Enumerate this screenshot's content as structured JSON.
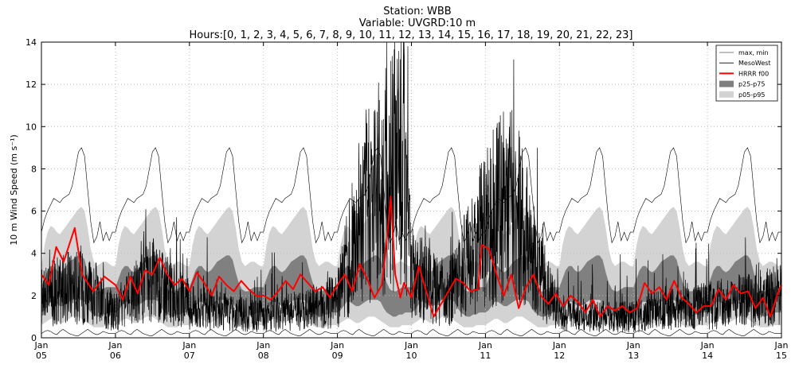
{
  "chart_data": {
    "type": "line",
    "title_lines": [
      "Station: WBB",
      "Variable: UVGRD:10 m",
      "Hours:[0, 1, 2, 3, 4, 5, 6, 7, 8, 9, 10, 11, 12, 13, 14, 15, 16, 17, 18, 19, 20, 21, 22, 23]"
    ],
    "ylabel": "10 m Wind Speed (m s⁻¹)",
    "xlabel": "",
    "ylim": [
      0,
      14
    ],
    "yticks": [
      0,
      2,
      4,
      6,
      8,
      10,
      12,
      14
    ],
    "x_domain_days": [
      5,
      15
    ],
    "x_ticks": [
      {
        "day": 5,
        "top": "Jan",
        "bottom": "05"
      },
      {
        "day": 6,
        "top": "Jan",
        "bottom": "06"
      },
      {
        "day": 7,
        "top": "Jan",
        "bottom": "07"
      },
      {
        "day": 8,
        "top": "Jan",
        "bottom": "08"
      },
      {
        "day": 9,
        "top": "Jan",
        "bottom": "09"
      },
      {
        "day": 10,
        "top": "Jan",
        "bottom": "10"
      },
      {
        "day": 11,
        "top": "Jan",
        "bottom": "11"
      },
      {
        "day": 12,
        "top": "Jan",
        "bottom": "12"
      },
      {
        "day": 13,
        "top": "Jan",
        "bottom": "13"
      },
      {
        "day": 14,
        "top": "Jan",
        "bottom": "14"
      },
      {
        "day": 15,
        "top": "Jan",
        "bottom": "15"
      }
    ],
    "grid": true,
    "legend_position": "top-right",
    "legend": [
      {
        "label": "max, min",
        "kind": "line",
        "color": "#000000"
      },
      {
        "label": "MesoWest",
        "kind": "line",
        "color": "#000000"
      },
      {
        "label": "HRRR f00",
        "kind": "line",
        "color": "#ff0000"
      },
      {
        "label": "p25-p75",
        "kind": "patch",
        "color": "#808080"
      },
      {
        "label": "p05-p95",
        "kind": "patch",
        "color": "#d3d3d3"
      }
    ],
    "series": {
      "max_daily_profile": [
        5.0,
        5.6,
        6.0,
        6.3,
        6.6,
        6.5,
        6.4,
        6.6,
        6.7,
        6.8,
        7.2,
        8.0,
        8.8,
        9.0,
        8.6,
        7.0,
        5.5,
        4.5,
        4.8,
        5.5,
        4.6,
        5.0,
        4.6,
        5.0
      ],
      "min_daily_profile": [
        0.2,
        0.3,
        0.35,
        0.3,
        0.2,
        0.15,
        0.3,
        0.4,
        0.3,
        0.2,
        0.15,
        0.1,
        0.1,
        0.2,
        0.3,
        0.4,
        0.3,
        0.2,
        0.15,
        0.2,
        0.3,
        0.25,
        0.2,
        0.2
      ],
      "p95_daily_profile": [
        3.4,
        4.4,
        5.0,
        5.3,
        5.2,
        5.0,
        4.9,
        5.1,
        5.3,
        5.5,
        5.7,
        5.9,
        6.1,
        6.2,
        6.0,
        5.2,
        4.2,
        3.6,
        3.4,
        3.5,
        3.6,
        3.6,
        3.5,
        3.4
      ],
      "p75_daily_profile": [
        2.4,
        2.8,
        3.2,
        3.4,
        3.4,
        3.2,
        3.1,
        3.2,
        3.4,
        3.6,
        3.7,
        3.8,
        3.9,
        3.9,
        3.7,
        3.1,
        2.6,
        2.3,
        2.2,
        2.2,
        2.3,
        2.4,
        2.4,
        2.4
      ],
      "p25_daily_profile": [
        1.2,
        1.3,
        1.5,
        1.7,
        1.7,
        1.6,
        1.5,
        1.5,
        1.6,
        1.7,
        1.8,
        1.8,
        1.8,
        1.8,
        1.7,
        1.4,
        1.2,
        1.1,
        1.0,
        1.0,
        1.1,
        1.1,
        1.2,
        1.2
      ],
      "p05_daily_profile": [
        0.6,
        0.7,
        0.8,
        0.9,
        0.9,
        0.8,
        0.7,
        0.7,
        0.8,
        0.9,
        1.0,
        1.0,
        1.0,
        0.9,
        0.8,
        0.7,
        0.6,
        0.5,
        0.5,
        0.5,
        0.5,
        0.6,
        0.6,
        0.6
      ],
      "hrrr_f00": [
        [
          5.0,
          3.0
        ],
        [
          5.1,
          2.5
        ],
        [
          5.2,
          4.3
        ],
        [
          5.3,
          3.6
        ],
        [
          5.45,
          5.2
        ],
        [
          5.55,
          3.0
        ],
        [
          5.7,
          2.2
        ],
        [
          5.85,
          2.9
        ],
        [
          6.0,
          2.5
        ],
        [
          6.1,
          1.8
        ],
        [
          6.2,
          2.9
        ],
        [
          6.3,
          2.1
        ],
        [
          6.4,
          3.2
        ],
        [
          6.5,
          3.0
        ],
        [
          6.6,
          3.8
        ],
        [
          6.7,
          3.0
        ],
        [
          6.8,
          2.5
        ],
        [
          6.9,
          2.8
        ],
        [
          7.0,
          2.2
        ],
        [
          7.1,
          3.1
        ],
        [
          7.2,
          2.6
        ],
        [
          7.3,
          2.0
        ],
        [
          7.4,
          2.9
        ],
        [
          7.5,
          2.5
        ],
        [
          7.6,
          2.2
        ],
        [
          7.7,
          2.7
        ],
        [
          7.8,
          2.3
        ],
        [
          7.9,
          2.0
        ],
        [
          8.0,
          2.0
        ],
        [
          8.1,
          1.8
        ],
        [
          8.2,
          2.2
        ],
        [
          8.3,
          2.7
        ],
        [
          8.4,
          2.3
        ],
        [
          8.5,
          3.0
        ],
        [
          8.6,
          2.6
        ],
        [
          8.7,
          2.2
        ],
        [
          8.8,
          2.4
        ],
        [
          8.9,
          1.9
        ],
        [
          9.0,
          2.5
        ],
        [
          9.1,
          3.0
        ],
        [
          9.2,
          2.2
        ],
        [
          9.3,
          3.5
        ],
        [
          9.4,
          2.8
        ],
        [
          9.5,
          1.9
        ],
        [
          9.6,
          2.5
        ],
        [
          9.65,
          4.0
        ],
        [
          9.72,
          6.7
        ],
        [
          9.78,
          3.0
        ],
        [
          9.85,
          1.9
        ],
        [
          9.9,
          2.6
        ],
        [
          10.0,
          1.9
        ],
        [
          10.1,
          3.4
        ],
        [
          10.2,
          2.2
        ],
        [
          10.3,
          1.0
        ],
        [
          10.4,
          1.6
        ],
        [
          10.5,
          2.2
        ],
        [
          10.6,
          2.8
        ],
        [
          10.7,
          2.6
        ],
        [
          10.8,
          2.2
        ],
        [
          10.9,
          2.3
        ],
        [
          10.95,
          4.4
        ],
        [
          11.05,
          4.2
        ],
        [
          11.15,
          3.0
        ],
        [
          11.25,
          2.0
        ],
        [
          11.35,
          3.0
        ],
        [
          11.45,
          1.4
        ],
        [
          11.55,
          2.4
        ],
        [
          11.65,
          3.0
        ],
        [
          11.75,
          2.0
        ],
        [
          11.85,
          1.6
        ],
        [
          11.95,
          2.1
        ],
        [
          12.05,
          1.5
        ],
        [
          12.15,
          2.0
        ],
        [
          12.25,
          1.7
        ],
        [
          12.35,
          1.2
        ],
        [
          12.45,
          1.8
        ],
        [
          12.55,
          1.0
        ],
        [
          12.65,
          1.5
        ],
        [
          12.75,
          1.3
        ],
        [
          12.85,
          1.5
        ],
        [
          12.95,
          1.2
        ],
        [
          13.05,
          1.4
        ],
        [
          13.15,
          2.6
        ],
        [
          13.25,
          2.1
        ],
        [
          13.35,
          2.4
        ],
        [
          13.45,
          1.8
        ],
        [
          13.55,
          2.7
        ],
        [
          13.65,
          1.9
        ],
        [
          13.75,
          1.6
        ],
        [
          13.85,
          1.2
        ],
        [
          13.95,
          1.5
        ],
        [
          14.05,
          1.5
        ],
        [
          14.15,
          2.3
        ],
        [
          14.25,
          1.8
        ],
        [
          14.35,
          2.5
        ],
        [
          14.45,
          2.1
        ],
        [
          14.55,
          2.2
        ],
        [
          14.65,
          1.4
        ],
        [
          14.75,
          1.9
        ],
        [
          14.85,
          1.0
        ],
        [
          14.95,
          2.1
        ],
        [
          15.0,
          2.5
        ]
      ],
      "mesowest_envelope": [
        [
          5.0,
          2.0
        ],
        [
          5.5,
          2.5
        ],
        [
          6.0,
          1.2
        ],
        [
          6.5,
          2.8
        ],
        [
          7.0,
          1.5
        ],
        [
          7.5,
          1.2
        ],
        [
          8.0,
          1.0
        ],
        [
          8.5,
          1.3
        ],
        [
          9.0,
          1.8
        ],
        [
          9.3,
          5.5
        ],
        [
          9.5,
          7.0
        ],
        [
          9.7,
          7.5
        ],
        [
          9.9,
          9.0
        ],
        [
          10.0,
          3.0
        ],
        [
          10.5,
          2.0
        ],
        [
          10.9,
          4.5
        ],
        [
          11.1,
          5.8
        ],
        [
          11.4,
          6.5
        ],
        [
          11.7,
          3.0
        ],
        [
          12.0,
          1.2
        ],
        [
          12.5,
          1.0
        ],
        [
          13.0,
          1.0
        ],
        [
          13.5,
          1.5
        ],
        [
          14.0,
          1.5
        ],
        [
          14.5,
          1.8
        ],
        [
          15.0,
          2.0
        ]
      ],
      "mesowest_peak": [
        [
          9.95,
          13.8
        ],
        [
          9.77,
          10.6
        ],
        [
          9.6,
          10.3
        ],
        [
          11.7,
          9.0
        ]
      ]
    }
  }
}
